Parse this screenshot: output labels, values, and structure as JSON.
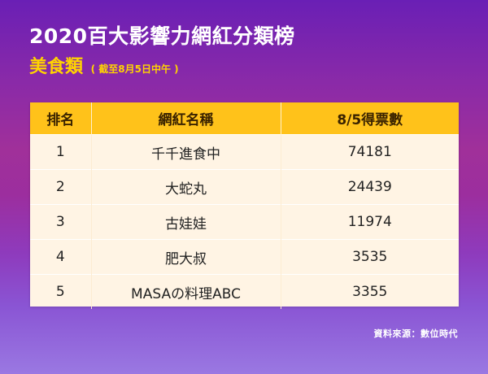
{
  "header": {
    "title": "2020百大影響力網紅分類榜",
    "subtitle": "美食類",
    "note": "( 截至8月5日中午 )"
  },
  "table": {
    "columns": [
      "排名",
      "網紅名稱",
      "8/5得票數"
    ],
    "rows": [
      {
        "rank": "1",
        "name": "千千進食中",
        "votes": "74181"
      },
      {
        "rank": "2",
        "name": "大蛇丸",
        "votes": "24439"
      },
      {
        "rank": "3",
        "name": "古娃娃",
        "votes": "11974"
      },
      {
        "rank": "4",
        "name": "肥大叔",
        "votes": "3535"
      },
      {
        "rank": "5",
        "name": "MASAの料理ABC",
        "votes": "3355"
      }
    ]
  },
  "footer": {
    "source": "資料來源：數位時代"
  },
  "colors": {
    "header_bg": "#ffc21a",
    "row_bg": "#fff4e4",
    "subtitle": "#ffd400",
    "background_top": "#6a1fb5",
    "background_bottom": "#9a78e2"
  }
}
